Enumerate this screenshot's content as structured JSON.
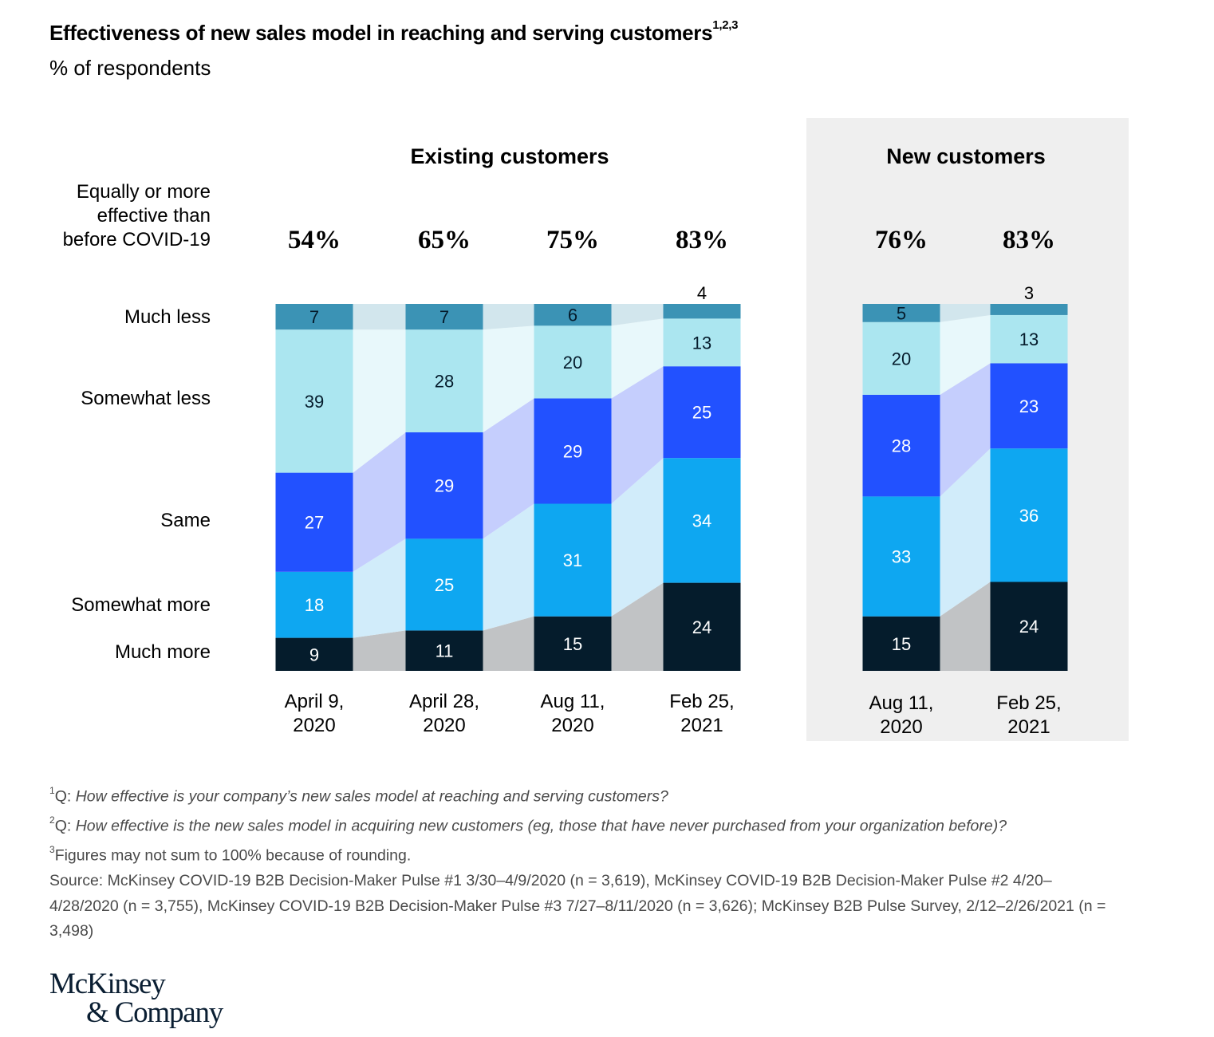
{
  "title": {
    "text": "Effectiveness of new sales model in reaching and serving customers",
    "sup": "1,2,3"
  },
  "subtitle": "% of respondents",
  "colors": {
    "much_less": "#3b93b5",
    "somewhat_less": "#abe6f0",
    "same": "#2251ff",
    "somewhat_more": "#0ea7f1",
    "much_more": "#051c2c",
    "panel_bg": "#efefef"
  },
  "chart_data": [
    {
      "type": "bar",
      "stacked": true,
      "title": "Existing customers",
      "categories": [
        "April 9, 2020",
        "April 28, 2020",
        "Aug 11, 2020",
        "Feb 25, 2021"
      ],
      "category_lines": [
        [
          "April 9,",
          "2020"
        ],
        [
          "April 28,",
          "2020"
        ],
        [
          "Aug 11,",
          "2020"
        ],
        [
          "Feb 25,",
          "2021"
        ]
      ],
      "equally_or_more": [
        "54%",
        "65%",
        "75%",
        "83%"
      ],
      "series": [
        {
          "name": "Much more",
          "key": "much_more",
          "values": [
            9,
            11,
            15,
            24
          ]
        },
        {
          "name": "Somewhat more",
          "key": "somewhat_more",
          "values": [
            18,
            25,
            31,
            34
          ]
        },
        {
          "name": "Same",
          "key": "same",
          "values": [
            27,
            29,
            29,
            25
          ]
        },
        {
          "name": "Somewhat less",
          "key": "somewhat_less",
          "values": [
            39,
            28,
            20,
            13
          ]
        },
        {
          "name": "Much less",
          "key": "much_less",
          "values": [
            7,
            7,
            6,
            4
          ]
        }
      ]
    },
    {
      "type": "bar",
      "stacked": true,
      "title": "New customers",
      "categories": [
        "Aug 11, 2020",
        "Feb 25, 2021"
      ],
      "category_lines": [
        [
          "Aug 11,",
          "2020"
        ],
        [
          "Feb 25,",
          "2021"
        ]
      ],
      "equally_or_more": [
        "76%",
        "83%"
      ],
      "series": [
        {
          "name": "Much more",
          "key": "much_more",
          "values": [
            15,
            24
          ]
        },
        {
          "name": "Somewhat more",
          "key": "somewhat_more",
          "values": [
            33,
            36
          ]
        },
        {
          "name": "Same",
          "key": "same",
          "values": [
            28,
            23
          ]
        },
        {
          "name": "Somewhat less",
          "key": "somewhat_less",
          "values": [
            20,
            13
          ]
        },
        {
          "name": "Much less",
          "key": "much_less",
          "values": [
            5,
            3
          ]
        }
      ]
    }
  ],
  "row_labels": {
    "equally_or_more": [
      "Equally or more",
      "effective than",
      "before COVID-19"
    ],
    "much_less": "Much less",
    "somewhat_less": "Somewhat less",
    "same": "Same",
    "somewhat_more": "Somewhat more",
    "much_more": "Much more"
  },
  "footnotes": {
    "f1": {
      "sup": "1",
      "prefix": "Q: ",
      "text": "How effective is your company’s new sales model at reaching and serving customers?"
    },
    "f2": {
      "sup": "2",
      "prefix": "Q: ",
      "text": "How effective is the new sales model in acquiring new customers (eg, those that have never purchased from your organization before)?"
    },
    "f3": {
      "sup": "3",
      "text": "Figures may not sum to 100% because of rounding."
    },
    "source": "Source: McKinsey COVID-19 B2B Decision-Maker Pulse #1 3/30–4/9/2020 (n =  3,619), McKinsey COVID-19 B2B Decision-Maker Pulse #2 4/20–4/28/2020 (n = 3,755), McKinsey COVID-19 B2B Decision-Maker Pulse #3 7/27–8/11/2020 (n = 3,626); McKinsey B2B Pulse Survey, 2/12–2/26/2021 (n = 3,498)"
  },
  "logo": {
    "line1": "McKinsey",
    "line2": "& Company"
  }
}
